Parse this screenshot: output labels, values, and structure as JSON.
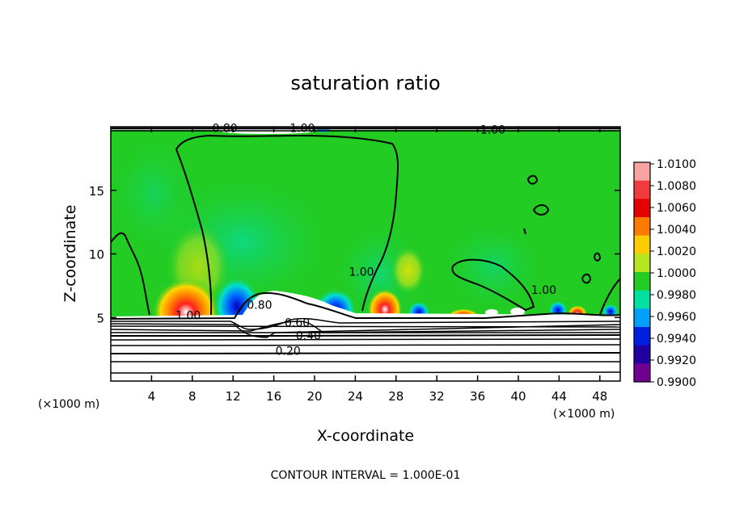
{
  "chart_data": {
    "type": "heatmap",
    "title": "saturation ratio",
    "xlabel": "X-coordinate",
    "ylabel": "Z-coordinate",
    "x_unit_left": "(×1000 m)",
    "x_unit_right": "(×1000 m)",
    "xlim": [
      0,
      50
    ],
    "ylim": [
      0,
      20
    ],
    "x_ticks": [
      4,
      8,
      12,
      16,
      20,
      24,
      28,
      32,
      36,
      40,
      44,
      48
    ],
    "y_ticks": [
      5,
      10,
      15
    ],
    "colorbar": {
      "levels": [
        "1.0100",
        "1.0080",
        "1.0060",
        "1.0040",
        "1.0020",
        "1.0000",
        "0.9980",
        "0.9960",
        "0.9940",
        "0.9920",
        "0.9900"
      ],
      "colors": [
        "#f9a3a3",
        "#f03c3c",
        "#e60000",
        "#ff7a00",
        "#ffcc00",
        "#b5e61d",
        "#22cc22",
        "#00e0a0",
        "#00a0ff",
        "#0020e0",
        "#2000a0",
        "#700090"
      ]
    },
    "contour_labels": [
      {
        "text": "0.80",
        "x": 11.2,
        "z": 19.7
      },
      {
        "text": "1.00",
        "x": 18.8,
        "z": 19.7
      },
      {
        "text": "1.00",
        "x": 37.5,
        "z": 19.6
      },
      {
        "text": "1.00",
        "x": 24.6,
        "z": 8.4
      },
      {
        "text": "1.00",
        "x": 42.5,
        "z": 7.0
      },
      {
        "text": "1.00",
        "x": 7.6,
        "z": 5.0
      },
      {
        "text": "0.80",
        "x": 14.6,
        "z": 5.8
      },
      {
        "text": "0.60",
        "x": 18.3,
        "z": 4.4
      },
      {
        "text": "0.40",
        "x": 19.4,
        "z": 3.4
      },
      {
        "text": "0.20",
        "x": 17.4,
        "z": 2.2
      }
    ],
    "contour_interval": "CONTOUR INTERVAL = 1.000E-01"
  }
}
